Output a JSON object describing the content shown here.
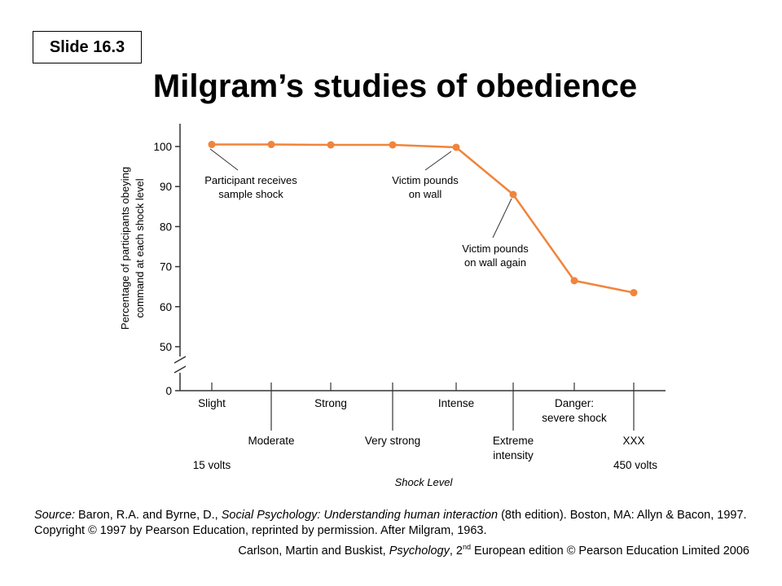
{
  "slide_label": "Slide 16.3",
  "title": "Milgram’s studies of obedience",
  "source": {
    "prefix": "Source:",
    "authors": " Baron, R.A. and Byrne, D., ",
    "book": "Social Psychology: Understanding human interaction",
    "rest": " (8th edition). Boston, MA: Allyn & Bacon, 1997. Copyright © 1997 by Pearson Education, reprinted by permission. After Milgram, 1963."
  },
  "copyright": {
    "a": "Carlson, Martin and Buskist, ",
    "b": "Psychology",
    "c": ", 2",
    "sup": "nd",
    "d": " European edition © Pearson Education Limited 2006"
  },
  "chart_data": {
    "type": "line",
    "categories": [
      "Slight",
      "Moderate",
      "Strong",
      "Very strong",
      "Intense",
      "Extreme intensity",
      "Danger: severe shock",
      "XXX"
    ],
    "category_labels": [
      [
        "Slight"
      ],
      [
        "Moderate"
      ],
      [
        "Strong"
      ],
      [
        "Very strong"
      ],
      [
        "Intense"
      ],
      [
        "Extreme",
        "intensity"
      ],
      [
        "Danger:",
        "severe shock"
      ],
      [
        "XXX"
      ]
    ],
    "values": [
      100.5,
      100.5,
      100.4,
      100.4,
      99.8,
      88.0,
      66.5,
      63.5
    ],
    "ylabel": [
      "Percentage of participants obeying",
      "command at each shock level"
    ],
    "xlabel": "Shock Level",
    "yticks": [
      100,
      90,
      80,
      70,
      60,
      50,
      0
    ],
    "ylim": [
      50,
      102
    ],
    "axis_break": true,
    "range_labels": [
      "15 volts",
      "450 volts"
    ],
    "series_color": "#f0843c",
    "annotations": [
      {
        "lines": [
          "Participant receives",
          "sample shock"
        ],
        "point_index": 0
      },
      {
        "lines": [
          "Victim pounds",
          "on wall"
        ],
        "point_index": 4
      },
      {
        "lines": [
          "Victim pounds",
          "on wall again"
        ],
        "point_index": 5
      }
    ]
  }
}
